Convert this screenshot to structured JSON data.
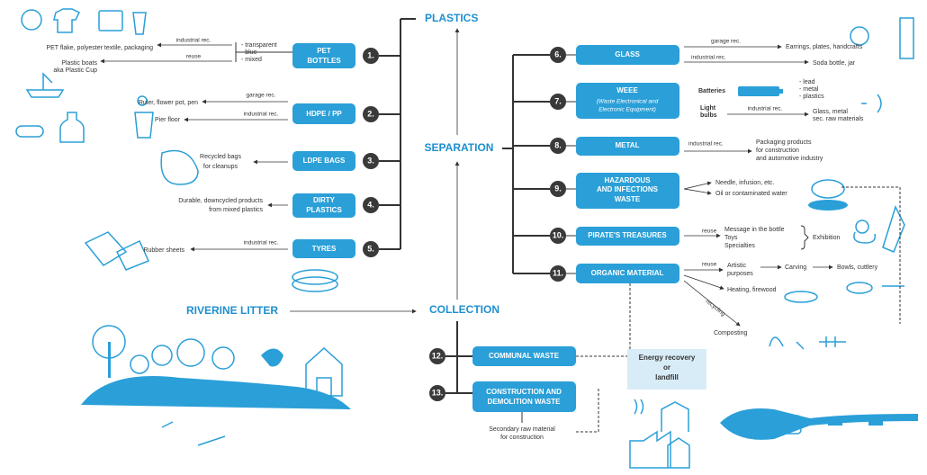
{
  "headings": {
    "plastics": "PLASTICS",
    "separation": "SEPARATION",
    "collection": "COLLECTION",
    "riverine": "RIVERINE LITTER"
  },
  "plastics": {
    "items": [
      {
        "number": "1.",
        "name": [
          "PET",
          "BOTTLES"
        ],
        "types": [
          "- transparent",
          "- blue",
          "- mixed"
        ],
        "outputs": [
          {
            "method": "industrial rec.",
            "result": [
              "PET flake, polyester textile, packaging"
            ]
          },
          {
            "method": "reuse",
            "result": [
              "Plastic boats",
              "aka Plastic Cup"
            ]
          }
        ]
      },
      {
        "number": "2.",
        "name": [
          "HDPE / PP"
        ],
        "outputs": [
          {
            "method": "garage rec.",
            "result": [
              "Ruler, flower pot, pen"
            ]
          },
          {
            "method": "industrial rec.",
            "result": [
              "Pier floor"
            ]
          }
        ]
      },
      {
        "number": "3.",
        "name": [
          "LDPE BAGS"
        ],
        "outputs": [
          {
            "result": [
              "Recycled bags",
              "for cleanups"
            ]
          }
        ]
      },
      {
        "number": "4.",
        "name": [
          "DIRTY",
          "PLASTICS"
        ],
        "outputs": [
          {
            "result": [
              "Durable, downcycled products",
              "from mixed plastics"
            ]
          }
        ]
      },
      {
        "number": "5.",
        "name": [
          "TYRES"
        ],
        "outputs": [
          {
            "method": "industrial rec.",
            "result": [
              "Rubber sheets"
            ]
          }
        ]
      }
    ]
  },
  "separation": {
    "items": [
      {
        "number": "6.",
        "name": [
          "GLASS"
        ],
        "outputs": [
          {
            "method": "garage rec.",
            "result": [
              "Earrings, plates, handcrafts"
            ]
          },
          {
            "method": "industrial rec.",
            "result": [
              "Soda bottle, jar"
            ]
          }
        ]
      },
      {
        "number": "7.",
        "name": [
          "WEEE"
        ],
        "subtitle": [
          "(Waste Electronical and",
          "Electronic Equipment)"
        ],
        "outputs": [
          {
            "source": [
              "Batteries"
            ],
            "result": [
              "- lead",
              "- metal",
              "- plastics"
            ]
          },
          {
            "source": [
              "Light",
              "bulbs"
            ],
            "method": "industrial rec.",
            "result": [
              "Glass, metal",
              "sec. raw materials"
            ]
          }
        ]
      },
      {
        "number": "8.",
        "name": [
          "METAL"
        ],
        "outputs": [
          {
            "method": "industrial rec.",
            "result": [
              "Packaging products",
              "for construction",
              "and automotive industry"
            ]
          }
        ]
      },
      {
        "number": "9.",
        "name": [
          "HAZARDOUS",
          "AND INFECTIONS",
          "WASTE"
        ],
        "outputs": [
          {
            "result": [
              "Needle, infusion, etc."
            ]
          },
          {
            "result": [
              "Oil or contaminated water"
            ]
          }
        ]
      },
      {
        "number": "10.",
        "name": [
          "PIRATE'S TREASURES"
        ],
        "outputs": [
          {
            "method": "reuse",
            "result": [
              "Message in the bottle",
              "Toys",
              "Specialties"
            ],
            "destination": "Exhibition"
          }
        ]
      },
      {
        "number": "11.",
        "name": [
          "ORGANIC MATERIAL"
        ],
        "outputs": [
          {
            "method": "reuse",
            "result": [
              "Artistic",
              "purposes"
            ],
            "next": "Carving",
            "final": "Bowls, cuttlery"
          },
          {
            "result": [
              "Heating, firewood"
            ]
          },
          {
            "method": "recycling",
            "result": [
              "Composting"
            ]
          }
        ]
      }
    ]
  },
  "collection": {
    "items": [
      {
        "number": "12.",
        "name": [
          "COMMUNAL WASTE"
        ]
      },
      {
        "number": "13.",
        "name": [
          "CONSTRUCTION AND",
          "DEMOLITION WASTE"
        ],
        "outputs": [
          {
            "result": [
              "Secondary raw material",
              "for construction"
            ]
          }
        ]
      }
    ]
  },
  "energy_recovery": [
    "Energy recovery",
    "or",
    "landfill"
  ]
}
